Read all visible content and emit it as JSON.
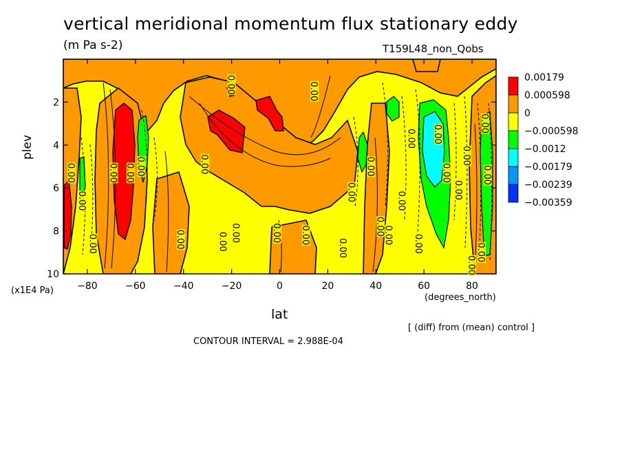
{
  "chart_data": {
    "type": "heatmap",
    "title": "vertical meridional momentum flux stationary eddy",
    "units": "(m Pa s-2)",
    "run_label": "T159L48_non_Qobs",
    "xlabel": "lat",
    "xunits": "(degrees_north)",
    "ylabel": "plev",
    "yscale": "(x1E4 Pa)",
    "xlim": [
      -90,
      90
    ],
    "ylim": [
      10,
      0
    ],
    "xticks": [
      "-80",
      "-60",
      "-40",
      "-20",
      "0",
      "20",
      "40",
      "60",
      "80"
    ],
    "yticks": [
      "2",
      "4",
      "6",
      "8",
      "10"
    ],
    "legend": {
      "placement": "right",
      "levels": [
        "0.00179",
        "0.000598",
        "0",
        "−0.000598",
        "−0.0012",
        "−0.00179",
        "−0.00239",
        "−0.00359"
      ],
      "colors": [
        "#ff0000",
        "#ff9900",
        "#ffff00",
        "#00ff00",
        "#00ffff",
        "#0099ff",
        "#0033ff"
      ]
    },
    "contour_label": "0.00",
    "diff_note": "[ (diff) from (mean) control ]",
    "contour_interval": "CONTOUR INTERVAL = 2.988E-04"
  }
}
